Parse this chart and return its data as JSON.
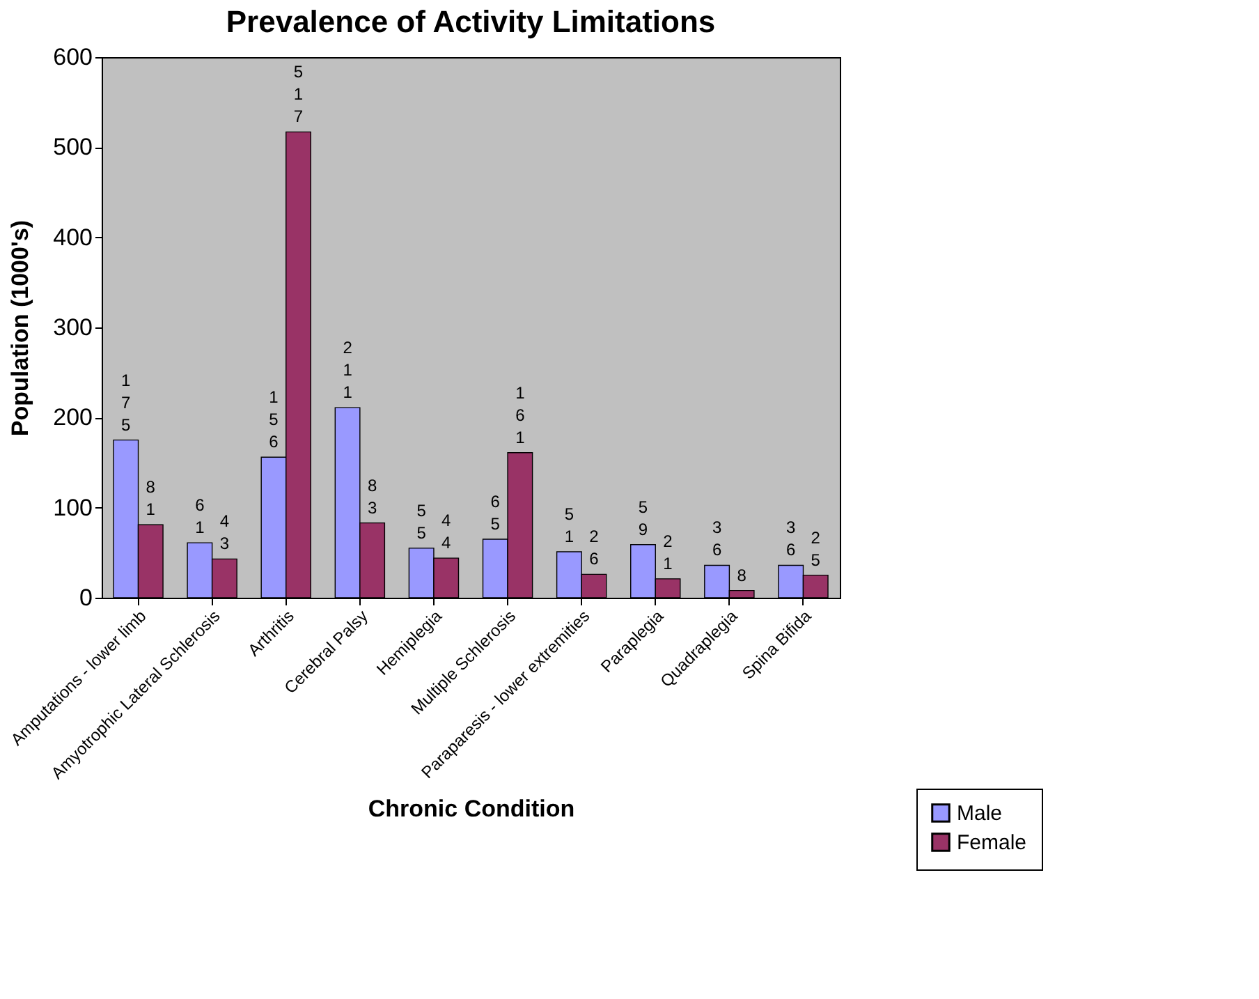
{
  "chart_data": {
    "type": "bar",
    "title": "Prevalence of Activity Limitations",
    "xlabel": "Chronic Condition",
    "ylabel": "Population (1000's)",
    "categories": [
      "Amputations - lower limb",
      "Amyotrophic Lateral Schlerosis",
      "Arthritis",
      "Cerebral Palsy",
      "Hemiplegia",
      "Multiple Schlerosis",
      "Paraparesis - lower extremities",
      "Paraplegia",
      "Quadraplegia",
      "Spina Bifida"
    ],
    "series": [
      {
        "name": "Male",
        "color": "#9999ff",
        "values": [
          175,
          61,
          156,
          211,
          55,
          65,
          51,
          59,
          36,
          36
        ]
      },
      {
        "name": "Female",
        "color": "#993366",
        "values": [
          81,
          43,
          517,
          83,
          44,
          161,
          26,
          21,
          8,
          25
        ]
      }
    ],
    "ylim": [
      0,
      600
    ],
    "yticks": [
      0,
      100,
      200,
      300,
      400,
      500,
      600
    ],
    "grid": false,
    "legend": "bottom right",
    "data_labels": true
  }
}
